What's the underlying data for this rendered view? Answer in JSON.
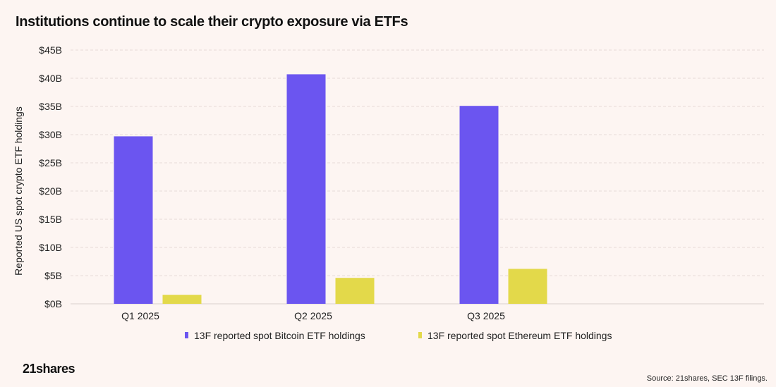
{
  "title": "Institutions continue to scale their crypto exposure via ETFs",
  "logo": "21shares",
  "source": "Source: 21shares, SEC 13F filings.",
  "chart_data": {
    "type": "bar",
    "title": "Institutions continue to scale their crypto exposure via ETFs",
    "xlabel": "",
    "ylabel": "Reported US spot crypto ETF holdings",
    "categories": [
      "Q1 2025",
      "Q2 2025",
      "Q3 2025"
    ],
    "series": [
      {
        "name": "13F reported spot Bitcoin ETF holdings",
        "color": "#6b55f0",
        "values": [
          29.7,
          40.7,
          35.1
        ]
      },
      {
        "name": "13F reported spot Ethereum ETF holdings",
        "color": "#e3d94a",
        "values": [
          1.6,
          4.6,
          6.2
        ]
      }
    ],
    "ylim": [
      0,
      45
    ],
    "yticks": [
      0,
      5,
      10,
      15,
      20,
      25,
      30,
      35,
      40,
      45
    ],
    "ytick_labels": [
      "$0B",
      "$5B",
      "$10B",
      "$15B",
      "$20B",
      "$25B",
      "$30B",
      "$35B",
      "$40B",
      "$45B"
    ],
    "grid": true,
    "legend": "bottom-center"
  }
}
